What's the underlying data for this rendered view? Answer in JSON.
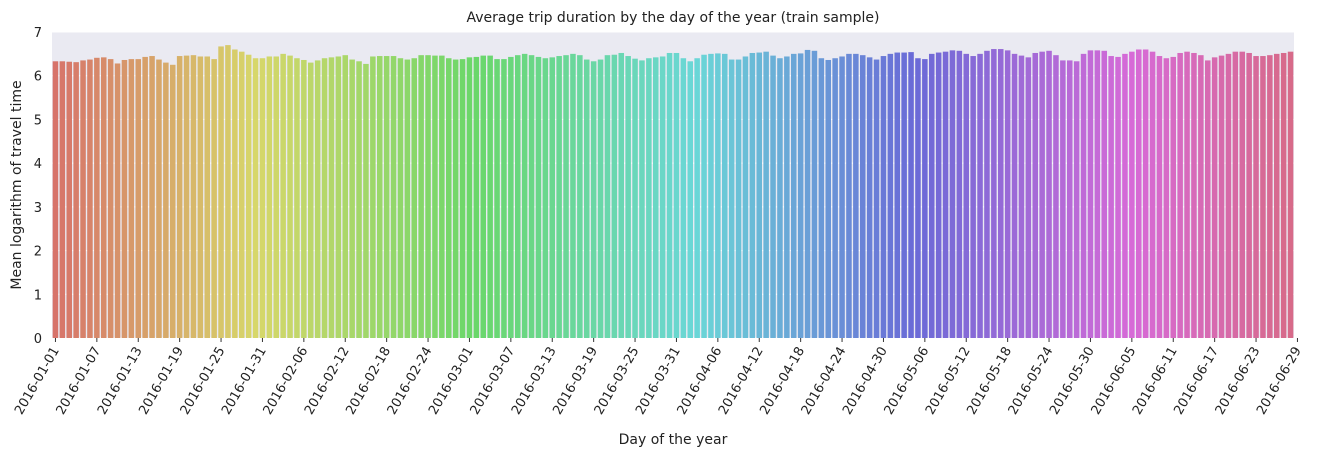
{
  "chart_data": {
    "type": "bar",
    "title": "Average trip duration by the day of the year (train sample)",
    "xlabel": "Day of the year",
    "ylabel": "Mean logarithm of travel time",
    "ylim": [
      0,
      7
    ],
    "yticks": [
      0,
      1,
      2,
      3,
      4,
      5,
      6,
      7
    ],
    "grid": true,
    "background_color": "#eaeaf2",
    "start_date": "2016-01-01",
    "tick_every_days": 6,
    "x_tick_labels": [
      "2016-01-01",
      "2016-01-07",
      "2016-01-13",
      "2016-01-19",
      "2016-01-25",
      "2016-01-31",
      "2016-02-06",
      "2016-02-12",
      "2016-02-18",
      "2016-02-24",
      "2016-03-01",
      "2016-03-07",
      "2016-03-13",
      "2016-03-19",
      "2016-03-25",
      "2016-03-31",
      "2016-04-06",
      "2016-04-12",
      "2016-04-18",
      "2016-04-24",
      "2016-04-30",
      "2016-05-06",
      "2016-05-12",
      "2016-05-18",
      "2016-05-24",
      "2016-05-30",
      "2016-06-05",
      "2016-06-11",
      "2016-06-17",
      "2016-06-23",
      "2016-06-29"
    ],
    "values": [
      6.33,
      6.33,
      6.32,
      6.31,
      6.35,
      6.37,
      6.41,
      6.42,
      6.38,
      6.28,
      6.36,
      6.38,
      6.38,
      6.43,
      6.45,
      6.37,
      6.3,
      6.25,
      6.45,
      6.46,
      6.47,
      6.44,
      6.44,
      6.38,
      6.67,
      6.7,
      6.6,
      6.55,
      6.48,
      6.4,
      6.4,
      6.44,
      6.44,
      6.5,
      6.46,
      6.4,
      6.36,
      6.3,
      6.35,
      6.4,
      6.42,
      6.44,
      6.47,
      6.37,
      6.33,
      6.27,
      6.44,
      6.45,
      6.45,
      6.45,
      6.4,
      6.37,
      6.4,
      6.47,
      6.47,
      6.46,
      6.46,
      6.4,
      6.37,
      6.38,
      6.42,
      6.43,
      6.46,
      6.46,
      6.38,
      6.38,
      6.43,
      6.47,
      6.5,
      6.47,
      6.43,
      6.4,
      6.42,
      6.45,
      6.47,
      6.5,
      6.47,
      6.37,
      6.33,
      6.37,
      6.47,
      6.48,
      6.52,
      6.45,
      6.39,
      6.35,
      6.4,
      6.42,
      6.44,
      6.52,
      6.52,
      6.4,
      6.33,
      6.4,
      6.48,
      6.5,
      6.51,
      6.5,
      6.37,
      6.37,
      6.44,
      6.52,
      6.53,
      6.55,
      6.46,
      6.4,
      6.44,
      6.5,
      6.51,
      6.59,
      6.57,
      6.4,
      6.36,
      6.4,
      6.44,
      6.5,
      6.5,
      6.47,
      6.42,
      6.37,
      6.45,
      6.5,
      6.53,
      6.53,
      6.54,
      6.4,
      6.38,
      6.5,
      6.53,
      6.55,
      6.58,
      6.57,
      6.5,
      6.45,
      6.5,
      6.57,
      6.61,
      6.61,
      6.58,
      6.5,
      6.46,
      6.42,
      6.52,
      6.55,
      6.57,
      6.47,
      6.35,
      6.35,
      6.33,
      6.5,
      6.58,
      6.58,
      6.57,
      6.45,
      6.43,
      6.5,
      6.55,
      6.6,
      6.6,
      6.55,
      6.45,
      6.4,
      6.43,
      6.52,
      6.55,
      6.52,
      6.47,
      6.35,
      6.42,
      6.46,
      6.5,
      6.55,
      6.55,
      6.52,
      6.45,
      6.45,
      6.47,
      6.5,
      6.52,
      6.55
    ]
  }
}
